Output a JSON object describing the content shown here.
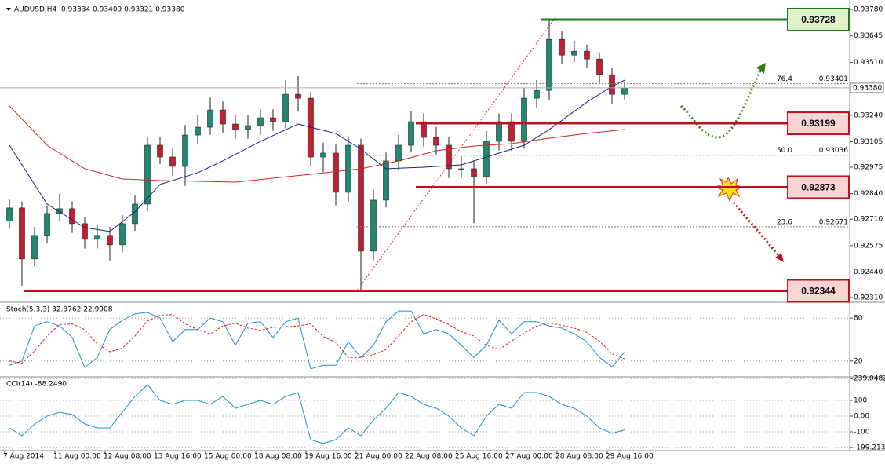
{
  "chart_data": [
    {
      "type": "candlestick",
      "title": "AUDUSD,H4  0.93334 0.93409 0.93321 0.93380",
      "up_color": "#1f8a70",
      "down_color": "#c0202f",
      "open": [
        0.927,
        0.92767,
        0.92507,
        0.92627,
        0.92739,
        0.92763,
        0.92687,
        0.92607,
        0.92627,
        0.92579,
        0.92687,
        0.92787,
        0.93087,
        0.93027,
        0.92979,
        0.93139,
        0.93179,
        0.93267,
        0.93195,
        0.93167,
        0.93187,
        0.93227,
        0.93207,
        0.93347,
        0.93327,
        0.93027,
        0.93047,
        0.92847,
        0.93087,
        0.92547,
        0.92807,
        0.93007,
        0.93087,
        0.93207,
        0.93127,
        0.93087,
        0.92967,
        0.92967,
        0.92927,
        0.93107,
        0.93207,
        0.93107,
        0.93327,
        0.93367,
        0.93627,
        0.93547,
        0.93567,
        0.93527,
        0.93447,
        0.93347
      ],
      "high": [
        0.9281,
        0.928,
        0.9267,
        0.9278,
        0.9284,
        0.928,
        0.9272,
        0.9268,
        0.9267,
        0.9273,
        0.9283,
        0.9313,
        0.9313,
        0.9307,
        0.9319,
        0.9324,
        0.9333,
        0.9331,
        0.9324,
        0.9324,
        0.9327,
        0.9327,
        0.9342,
        0.9344,
        0.9336,
        0.931,
        0.9309,
        0.9313,
        0.9312,
        0.9286,
        0.9305,
        0.9314,
        0.9326,
        0.9325,
        0.9318,
        0.9313,
        0.9303,
        0.9301,
        0.9316,
        0.9325,
        0.9325,
        0.9338,
        0.9342,
        0.93728,
        0.9367,
        0.9362,
        0.936,
        0.9356,
        0.9348,
        0.93409
      ],
      "low": [
        0.9266,
        0.9237,
        0.9247,
        0.9259,
        0.927,
        0.9264,
        0.9256,
        0.9256,
        0.925,
        0.9254,
        0.9265,
        0.9275,
        0.9299,
        0.9293,
        0.9288,
        0.9309,
        0.9314,
        0.9315,
        0.9312,
        0.9312,
        0.9314,
        0.9316,
        0.9317,
        0.9326,
        0.9298,
        0.9295,
        0.9278,
        0.928,
        0.92344,
        0.925,
        0.9277,
        0.9296,
        0.9305,
        0.9308,
        0.9304,
        0.9292,
        0.9292,
        0.9269,
        0.9289,
        0.9306,
        0.9306,
        0.9307,
        0.9328,
        0.9332,
        0.935,
        0.9351,
        0.9348,
        0.934,
        0.933,
        0.93321
      ],
      "close": [
        0.92767,
        0.92507,
        0.92627,
        0.92739,
        0.92763,
        0.92687,
        0.92607,
        0.92627,
        0.92579,
        0.92687,
        0.92787,
        0.93087,
        0.93027,
        0.92979,
        0.93139,
        0.93179,
        0.93267,
        0.93195,
        0.93167,
        0.93187,
        0.93227,
        0.93207,
        0.93347,
        0.93327,
        0.93027,
        0.93047,
        0.92847,
        0.93087,
        0.92547,
        0.92807,
        0.93007,
        0.93087,
        0.93207,
        0.93127,
        0.93087,
        0.92967,
        0.92967,
        0.92927,
        0.93107,
        0.93207,
        0.93107,
        0.93327,
        0.93367,
        0.93627,
        0.93547,
        0.93567,
        0.93527,
        0.93447,
        0.93347,
        0.9338
      ],
      "series": [
        {
          "color": "#1a237e",
          "x": [
            0,
            3,
            6,
            8,
            10,
            12,
            15,
            17,
            20,
            23,
            26,
            28,
            30,
            33,
            36,
            38,
            41,
            43,
            46,
            48,
            49
          ],
          "values": [
            0.93087,
            0.92787,
            0.92667,
            0.92647,
            0.92747,
            0.92887,
            0.92947,
            0.93007,
            0.93107,
            0.93195,
            0.93147,
            0.93067,
            0.92967,
            0.92975,
            0.92987,
            0.93027,
            0.93087,
            0.93167,
            0.93307,
            0.93387,
            0.93419
          ]
        },
        {
          "color": "#d32020",
          "x": [
            0,
            3,
            6,
            9,
            12,
            18,
            24,
            28,
            31,
            34,
            37,
            40,
            43,
            46,
            49
          ],
          "values": [
            0.93287,
            0.93087,
            0.92967,
            0.92915,
            0.92907,
            0.92899,
            0.92939,
            0.92967,
            0.93007,
            0.93059,
            0.93083,
            0.93095,
            0.93123,
            0.93147,
            0.93167
          ]
        }
      ],
      "ylim": [
        0.9229,
        0.93808
      ],
      "yticks": [
        {
          "value": 0.9378,
          "label": "0.93780"
        },
        {
          "value": 0.93645,
          "label": "0.93645"
        },
        {
          "value": 0.9351,
          "label": "0.93510"
        },
        {
          "value": 0.9324,
          "label": "0.93240"
        },
        {
          "value": 0.93105,
          "label": "0.93105"
        },
        {
          "value": 0.92975,
          "label": "0.92975"
        },
        {
          "value": 0.9284,
          "label": "0.92840"
        },
        {
          "value": 0.9271,
          "label": "0.92710"
        },
        {
          "value": 0.92575,
          "label": "0.92575"
        },
        {
          "value": 0.9244,
          "label": "0.92440"
        },
        {
          "value": 0.9231,
          "label": "0.92310"
        }
      ],
      "xticks": [
        {
          "value": 0,
          "label": "7 Aug 2014"
        },
        {
          "value": 4,
          "label": "11 Aug 00:00"
        },
        {
          "value": 8,
          "label": "12 Aug 08:00"
        },
        {
          "value": 12,
          "label": "13 Aug 16:00"
        },
        {
          "value": 16,
          "label": "15 Aug 00:00"
        },
        {
          "value": 20,
          "label": "18 Aug 08:00"
        },
        {
          "value": 24,
          "label": "19 Aug 16:00"
        },
        {
          "value": 28,
          "label": "21 Aug 00:00"
        },
        {
          "value": 32,
          "label": "22 Aug 08:00"
        },
        {
          "value": 36,
          "label": "25 Aug 16:00"
        },
        {
          "value": 40,
          "label": "27 Aug 00:00"
        },
        {
          "value": 44,
          "label": "28 Aug 08:00"
        },
        {
          "value": 48,
          "label": "29 Aug 16:00"
        }
      ],
      "current": {
        "value": 0.9338,
        "label": "0.93380"
      },
      "levels": [
        {
          "value": 0.93728,
          "color": "#1e7a1e",
          "fill": "#dff2c8"
        },
        {
          "value": 0.93199,
          "color": "#c0101e",
          "fill": "#fbd4d4"
        },
        {
          "value": 0.92873,
          "color": "#c0101e",
          "fill": "#fbd4d4"
        },
        {
          "value": 0.92344,
          "color": "#c0101e",
          "fill": "#fbd4d4"
        }
      ],
      "fib": [
        {
          "level": "76.4",
          "value": 0.93401
        },
        {
          "level": "50.0",
          "value": 0.93036
        },
        {
          "level": "23.6",
          "value": 0.92671
        }
      ]
    },
    {
      "type": "line",
      "title": "Stoch(5,3,3) 32.3762 22.9908",
      "grid": true,
      "ylim": [
        0,
        100
      ],
      "yticks": [
        80,
        20
      ],
      "series": [
        {
          "color": "#1e90c8",
          "values": [
            14,
            20,
            69,
            75,
            69,
            53,
            11,
            25,
            64,
            77,
            86,
            88,
            80,
            47,
            64,
            64,
            80,
            75,
            42,
            73,
            75,
            53,
            75,
            80,
            9,
            14,
            14,
            47,
            25,
            42,
            75,
            90,
            90,
            58,
            64,
            58,
            42,
            25,
            42,
            77,
            58,
            75,
            75,
            69,
            66,
            58,
            47,
            25,
            12,
            32.3762
          ]
        },
        {
          "color": "#e02020",
          "dashed": true,
          "values": [
            20,
            17,
            34,
            55,
            71,
            72,
            64,
            44,
            33,
            38,
            55,
            76,
            84,
            85,
            72,
            64,
            58,
            69,
            73,
            66,
            63,
            67,
            68,
            69,
            72,
            54,
            46,
            25,
            25,
            29,
            36,
            55,
            75,
            85,
            79,
            71,
            61,
            55,
            42,
            36,
            48,
            59,
            69,
            73,
            70,
            66,
            60,
            48,
            30,
            22.9908
          ]
        }
      ]
    },
    {
      "type": "line",
      "title": "CCI(14) -88.2490",
      "grid": true,
      "ylim": [
        -210,
        240
      ],
      "yticks": [
        239.0482,
        100,
        {
          "value": 0,
          "label": "0.00"
        },
        -100,
        -199.2134
      ],
      "series": [
        {
          "color": "#1e90c8",
          "values": [
            -75,
            -125,
            -50,
            0,
            25,
            10,
            -50,
            -75,
            -75,
            25,
            125,
            200,
            100,
            75,
            100,
            100,
            75,
            125,
            50,
            75,
            100,
            75,
            125,
            150,
            -150,
            -175,
            -150,
            -75,
            -125,
            -25,
            50,
            150,
            125,
            75,
            50,
            0,
            -75,
            -125,
            0,
            75,
            50,
            150,
            150,
            125,
            75,
            50,
            0,
            -75,
            -110,
            -88.249
          ]
        }
      ]
    }
  ]
}
